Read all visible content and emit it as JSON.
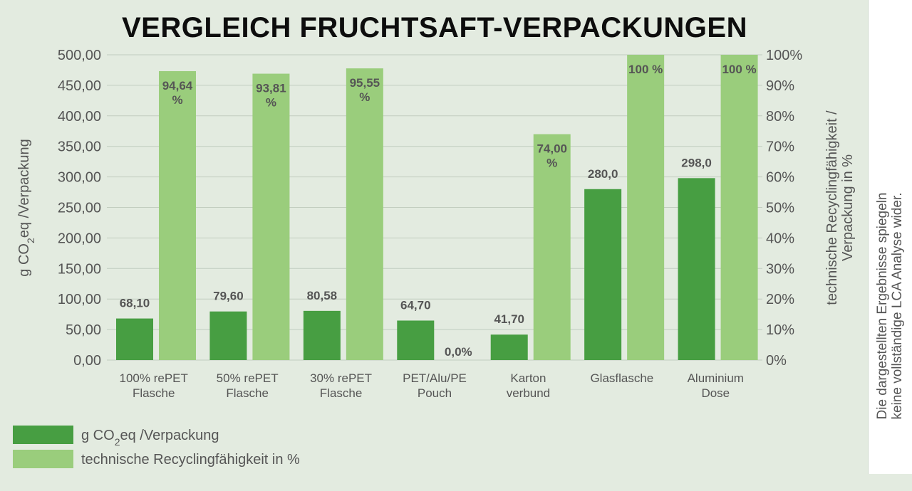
{
  "chart_data": {
    "type": "bar",
    "title": "VERGLEICH FRUCHTSAFT-VERPACKUNGEN",
    "categories": [
      [
        "100% rePET",
        "Flasche"
      ],
      [
        "50% rePET",
        "Flasche"
      ],
      [
        "30% rePET",
        "Flasche"
      ],
      [
        "PET/Alu/PE",
        "Pouch"
      ],
      [
        "Karton",
        "verbund"
      ],
      [
        "Glasflasche"
      ],
      [
        "Aluminium",
        "Dose"
      ]
    ],
    "series": [
      {
        "name": "g CO₂eq /Verpackung",
        "axis": "left",
        "color": "#479e42",
        "values": [
          68.1,
          79.6,
          80.58,
          64.7,
          41.7,
          280.0,
          298.0
        ],
        "labels": [
          "68,10",
          "79,60",
          "80,58",
          "64,70",
          "41,70",
          "280,0",
          "298,0"
        ]
      },
      {
        "name": "technische Recyclingfähigkeit in %",
        "axis": "right",
        "color": "#9acd7c",
        "values": [
          94.64,
          93.81,
          95.55,
          0.0,
          74.0,
          100,
          100
        ],
        "labels": [
          [
            "94,64",
            "%"
          ],
          [
            "93,81",
            "%"
          ],
          [
            "95,55",
            "%"
          ],
          [
            "0,0%"
          ],
          [
            "74,00",
            "%"
          ],
          [
            "100 %"
          ],
          [
            "100 %"
          ]
        ]
      }
    ],
    "y_left": {
      "label": "g CO₂eq /Verpackung",
      "ylim": [
        0,
        500
      ],
      "ticks": [
        "0,00",
        "50,00",
        "100,00",
        "150,00",
        "200,00",
        "250,00",
        "300,00",
        "350,00",
        "400,00",
        "450,00",
        "500,00"
      ]
    },
    "y_right": {
      "label": [
        "technische Recyclingfähigkeit /",
        "Verpackung in %"
      ],
      "ylim": [
        0,
        100
      ],
      "ticks": [
        "0%",
        "10%",
        "20%",
        "30%",
        "40%",
        "50%",
        "60%",
        "70%",
        "80%",
        "90%",
        "100%"
      ]
    },
    "grid": true,
    "legend_position": "bottom-left"
  },
  "side_note": {
    "line1": "Die dargestellten Ergebnisse spiegeln",
    "line2": "keine vollständige LCA Analyse wider."
  }
}
